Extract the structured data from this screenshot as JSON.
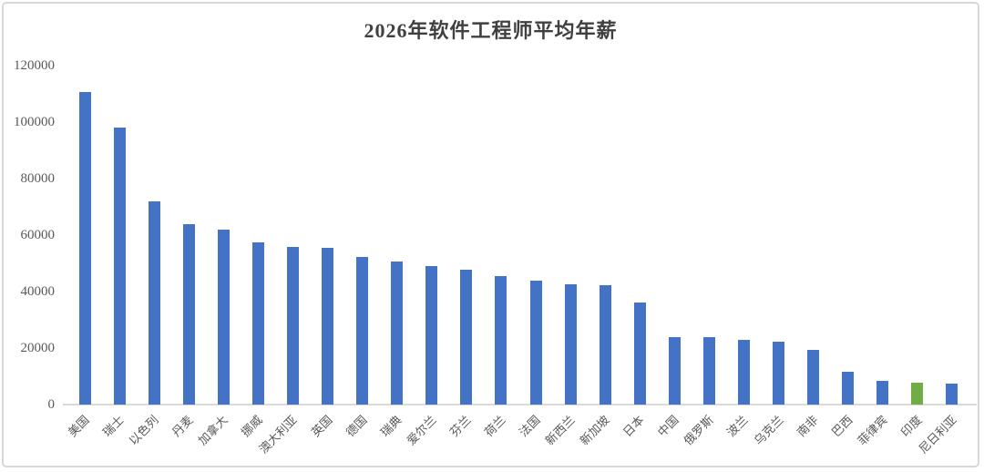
{
  "chart_data": {
    "type": "bar",
    "title": "2026年软件工程师平均年薪",
    "categories": [
      "美国",
      "瑞士",
      "以色列",
      "丹麦",
      "加拿大",
      "挪威",
      "澳大利亚",
      "英国",
      "德国",
      "瑞典",
      "爱尔兰",
      "芬兰",
      "荷兰",
      "法国",
      "新西兰",
      "新加坡",
      "日本",
      "中国",
      "俄罗斯",
      "波兰",
      "乌克兰",
      "南非",
      "巴西",
      "菲律宾",
      "印度",
      "尼日利亚"
    ],
    "values": [
      110500,
      98000,
      72000,
      64000,
      62000,
      57500,
      55800,
      55500,
      52400,
      50700,
      48900,
      47900,
      45400,
      44000,
      42600,
      42300,
      36000,
      23900,
      23900,
      22800,
      22400,
      19400,
      11500,
      8300,
      7900,
      7400
    ],
    "xlabel": "",
    "ylabel": "",
    "ylim": [
      0,
      120000
    ],
    "yticks": [
      0,
      20000,
      40000,
      60000,
      80000,
      100000,
      120000
    ],
    "grid": false,
    "legend": "none",
    "bar_color_default": "#4472C4",
    "bar_color_highlight": "#70AD47",
    "highlight_index": 24,
    "axis_line_color": "#d9d9d9",
    "tick_label_color": "#595959",
    "title_color": "#404040"
  }
}
